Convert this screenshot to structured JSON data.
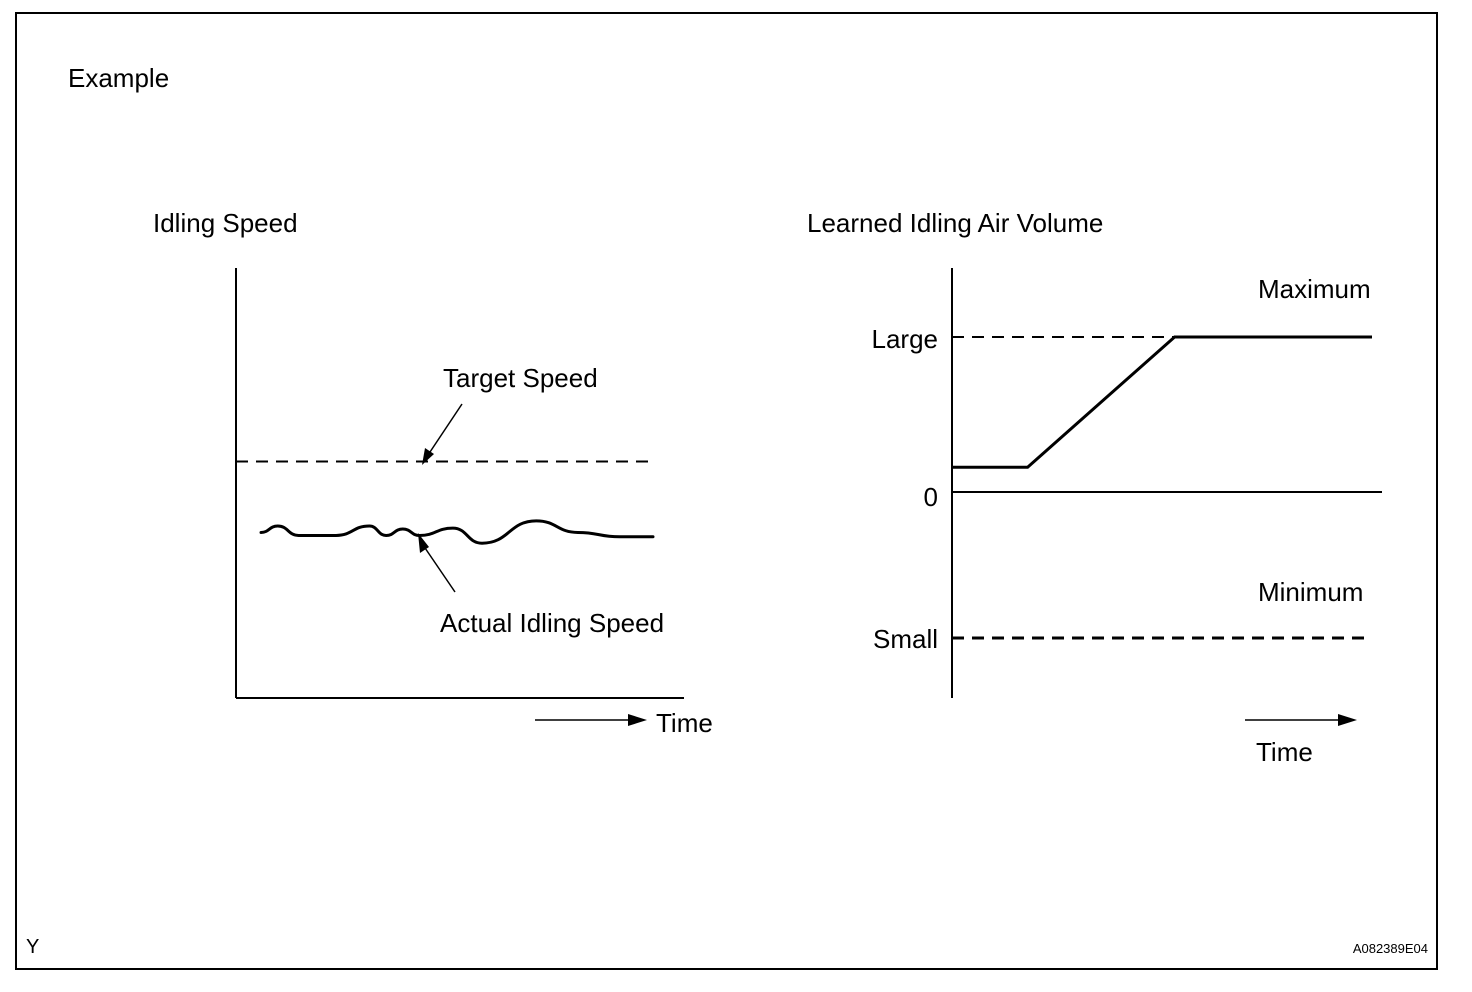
{
  "figure": {
    "heading": "Example",
    "corner_left": "Y",
    "corner_right": "A082389E04"
  },
  "colors": {
    "ink": "#000000",
    "background": "#ffffff"
  },
  "chart_data": [
    {
      "type": "line",
      "title": "Idling Speed",
      "xlabel": "Time",
      "ylabel": "",
      "series": [
        {
          "name": "Target Speed",
          "style": "dashed",
          "values": [
            [
              0,
              0.55
            ],
            [
              1,
              0.55
            ]
          ]
        },
        {
          "name": "Actual Idling Speed",
          "style": "solid",
          "values": [
            [
              0.06,
              0.385
            ],
            [
              0.1,
              0.4
            ],
            [
              0.15,
              0.378
            ],
            [
              0.24,
              0.378
            ],
            [
              0.32,
              0.4
            ],
            [
              0.36,
              0.378
            ],
            [
              0.4,
              0.393
            ],
            [
              0.44,
              0.378
            ],
            [
              0.52,
              0.395
            ],
            [
              0.59,
              0.36
            ],
            [
              0.72,
              0.412
            ],
            [
              0.82,
              0.385
            ],
            [
              0.92,
              0.375
            ],
            [
              1.0,
              0.375
            ]
          ]
        }
      ],
      "annotations": [
        "Target Speed",
        "Actual Idling Speed"
      ]
    },
    {
      "type": "line",
      "title": "Learned Idling Air Volume",
      "xlabel": "Time",
      "ylabel": "",
      "y_tick_labels": [
        "Large",
        "0",
        "Small"
      ],
      "y_ticks": [
        {
          "label": "Large",
          "value": 1
        },
        {
          "label": "0",
          "value": 0
        },
        {
          "label": "Small",
          "value": -1
        }
      ],
      "series": [
        {
          "name": "",
          "style": "solid",
          "values": [
            [
              0,
              0.16
            ],
            [
              0.18,
              0.16
            ],
            [
              0.53,
              1
            ],
            [
              1,
              1
            ]
          ]
        },
        {
          "name": "",
          "style": "dashed",
          "values": [
            [
              0,
              1
            ],
            [
              1,
              1
            ]
          ]
        },
        {
          "name": "",
          "style": "dashed",
          "values": [
            [
              0,
              -1
            ],
            [
              1,
              -1
            ]
          ]
        }
      ],
      "annotations": [
        "Maximum",
        "Minimum"
      ]
    }
  ]
}
